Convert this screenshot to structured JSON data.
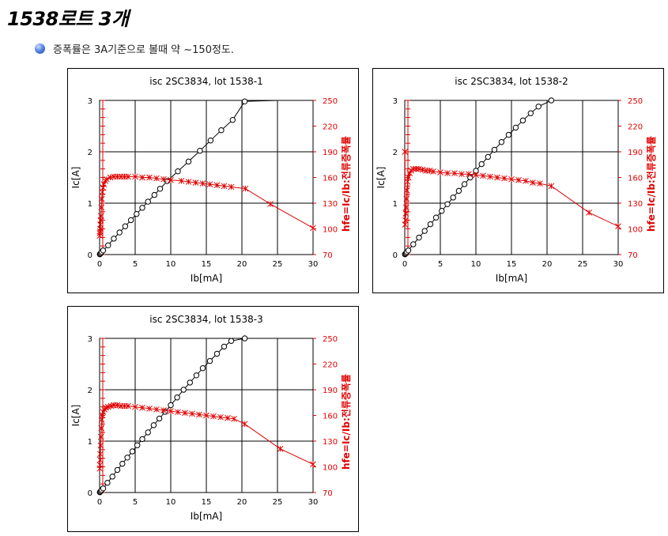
{
  "header": {
    "title": "1538로트 3개",
    "note": "증폭률은 3A기준으로 볼때 약 ~150정도."
  },
  "colors": {
    "ic_series": "#000000",
    "hfe_series": "#e00000",
    "grid": "#000000",
    "bullet": "#3a6fd8"
  },
  "chart_data": [
    {
      "type": "scatter",
      "title": "isc 2SC3834, lot 1538-1",
      "xlabel": "Ib[mA]",
      "ylabel": "Ic[A]",
      "y2label": "hfe=Ic/Ib:전류증폭률",
      "xlim": [
        0,
        30
      ],
      "ylim": [
        0,
        3
      ],
      "y2lim": [
        70,
        250
      ],
      "xticks": [
        "0",
        "5",
        "10",
        "15",
        "20",
        "25",
        "30"
      ],
      "yticks": [
        "0",
        "1",
        "2",
        "3"
      ],
      "y2ticks": [
        "70",
        "100",
        "130",
        "160",
        "190",
        "220",
        "250"
      ],
      "grid": true,
      "series": [
        {
          "name": "",
          "axis": "left",
          "marker": "circle",
          "x": [
            0.03,
            0.1,
            0.2,
            0.3,
            0.5,
            1.2,
            2.0,
            2.8,
            3.6,
            4.4,
            5.2,
            6.0,
            6.8,
            7.7,
            8.5,
            9.5,
            11.0,
            12.5,
            14.1,
            15.6,
            17.1,
            18.7,
            20.4,
            25.0,
            30.0
          ],
          "y": [
            0.005,
            0.015,
            0.03,
            0.05,
            0.08,
            0.18,
            0.31,
            0.43,
            0.55,
            0.67,
            0.79,
            0.91,
            1.03,
            1.16,
            1.28,
            1.43,
            1.62,
            1.81,
            2.02,
            2.22,
            2.42,
            2.62,
            2.98,
            3.0,
            3.0
          ]
        },
        {
          "name": "",
          "axis": "right",
          "marker": "cross",
          "x": [
            0.03,
            0.05,
            0.08,
            0.1,
            0.12,
            0.15,
            0.2,
            0.25,
            0.3,
            0.4,
            0.5,
            0.6,
            0.8,
            1.0,
            1.5,
            2.0,
            2.5,
            3.0,
            3.5,
            4.0,
            5.0,
            6.0,
            7.0,
            8.0,
            9.0,
            10.0,
            11.5,
            12.5,
            13.5,
            14.5,
            15.5,
            16.5,
            17.5,
            18.5,
            20.5,
            24.0,
            30.0
          ],
          "y": [
            92,
            95,
            97,
            100,
            105,
            110,
            115,
            125,
            135,
            143,
            148,
            152,
            156,
            158,
            160,
            161,
            161,
            161,
            161,
            161,
            161,
            160,
            160,
            159,
            158,
            157,
            156,
            155,
            154,
            153,
            152,
            151,
            150,
            149,
            147,
            129,
            101
          ]
        }
      ]
    },
    {
      "type": "scatter",
      "title": "isc 2SC3834, lot 1538-2",
      "xlabel": "Ib[mA]",
      "ylabel": "Ic[A]",
      "y2label": "hfe=Ic/Ib:전류증폭률",
      "xlim": [
        0,
        30
      ],
      "ylim": [
        0,
        3
      ],
      "y2lim": [
        70,
        250
      ],
      "xticks": [
        "0",
        "5",
        "10",
        "15",
        "20",
        "25",
        "30"
      ],
      "yticks": [
        "0",
        "1",
        "2",
        "3"
      ],
      "y2ticks": [
        "70",
        "100",
        "130",
        "160",
        "190",
        "220",
        "250"
      ],
      "grid": true,
      "series": [
        {
          "name": "",
          "axis": "left",
          "marker": "circle",
          "x": [
            0.03,
            0.1,
            0.2,
            0.3,
            0.5,
            1.2,
            2.0,
            2.8,
            3.6,
            4.4,
            5.2,
            6.0,
            6.8,
            7.6,
            8.4,
            9.2,
            10.0,
            10.8,
            11.7,
            12.6,
            13.6,
            14.6,
            15.6,
            16.6,
            17.7,
            18.8,
            20.6,
            25.0,
            30.0
          ],
          "y": [
            0.005,
            0.015,
            0.03,
            0.05,
            0.08,
            0.2,
            0.33,
            0.46,
            0.59,
            0.72,
            0.85,
            0.98,
            1.11,
            1.24,
            1.37,
            1.5,
            1.63,
            1.76,
            1.9,
            2.04,
            2.19,
            2.33,
            2.47,
            2.61,
            2.75,
            2.88,
            3.0,
            3.0,
            3.0
          ]
        },
        {
          "name": "",
          "axis": "right",
          "marker": "cross",
          "x": [
            0.03,
            0.05,
            0.1,
            0.15,
            0.2,
            0.25,
            0.3,
            0.4,
            0.5,
            0.7,
            0.9,
            1.2,
            1.6,
            2.0,
            2.5,
            3.0,
            3.5,
            4.0,
            5.0,
            6.0,
            7.0,
            8.0,
            9.0,
            10.0,
            11.0,
            12.0,
            13.0,
            14.0,
            15.0,
            16.0,
            17.0,
            18.0,
            19.0,
            20.6,
            25.9,
            30.0
          ],
          "y": [
            190,
            105,
            110,
            118,
            125,
            135,
            145,
            155,
            160,
            165,
            168,
            170,
            170,
            170,
            169,
            168,
            168,
            167,
            166,
            165,
            165,
            164,
            164,
            163,
            162,
            161,
            160,
            159,
            158,
            157,
            156,
            154,
            153,
            150,
            119,
            103
          ]
        }
      ]
    },
    {
      "type": "scatter",
      "title": "isc 2SC3834, lot 1538-3",
      "xlabel": "Ib[mA]",
      "ylabel": "Ic[A]",
      "y2label": "hfe=Ic/Ib:전류증폭률",
      "xlim": [
        0,
        30
      ],
      "ylim": [
        0,
        3
      ],
      "y2lim": [
        70,
        250
      ],
      "xticks": [
        "0",
        "5",
        "10",
        "15",
        "20",
        "25",
        "30"
      ],
      "yticks": [
        "0",
        "1",
        "2",
        "3"
      ],
      "y2ticks": [
        "70",
        "100",
        "130",
        "160",
        "190",
        "220",
        "250"
      ],
      "grid": true,
      "series": [
        {
          "name": "",
          "axis": "left",
          "marker": "circle",
          "x": [
            0.03,
            0.1,
            0.2,
            0.3,
            0.5,
            1.1,
            1.8,
            2.5,
            3.2,
            3.9,
            4.6,
            5.3,
            6.0,
            6.8,
            7.6,
            8.4,
            9.2,
            10.0,
            10.9,
            11.8,
            12.7,
            13.6,
            14.5,
            15.5,
            16.5,
            17.5,
            18.5,
            20.4,
            25.0,
            30.0
          ],
          "y": [
            0.005,
            0.015,
            0.03,
            0.05,
            0.08,
            0.19,
            0.31,
            0.44,
            0.56,
            0.68,
            0.8,
            0.92,
            1.04,
            1.17,
            1.31,
            1.44,
            1.57,
            1.7,
            1.85,
            2.0,
            2.14,
            2.28,
            2.42,
            2.56,
            2.7,
            2.84,
            2.95,
            3.0,
            3.0,
            3.0
          ]
        },
        {
          "name": "",
          "axis": "right",
          "marker": "cross",
          "x": [
            0.03,
            0.05,
            0.08,
            0.1,
            0.15,
            0.2,
            0.25,
            0.3,
            0.4,
            0.5,
            0.7,
            0.9,
            1.2,
            1.6,
            2.0,
            2.5,
            3.0,
            3.5,
            4.0,
            5.0,
            6.0,
            7.0,
            8.0,
            9.0,
            10.0,
            11.0,
            12.0,
            13.0,
            14.0,
            15.0,
            16.0,
            17.0,
            18.0,
            18.9,
            20.4,
            25.4,
            30.0
          ],
          "y": [
            98,
            102,
            108,
            115,
            125,
            135,
            145,
            155,
            160,
            164,
            167,
            169,
            170,
            171,
            172,
            172,
            171,
            171,
            171,
            170,
            169,
            168,
            167,
            166,
            165,
            164,
            163,
            162,
            161,
            160,
            159,
            158,
            157,
            156,
            150,
            121,
            103
          ]
        }
      ]
    }
  ]
}
